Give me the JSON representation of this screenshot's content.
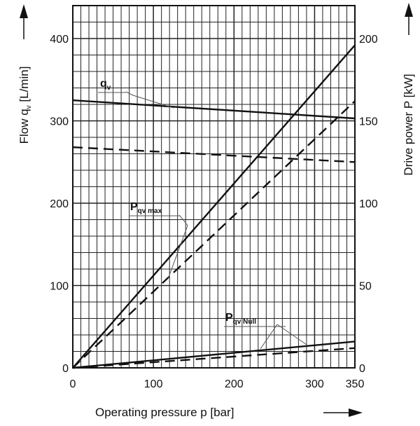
{
  "chart_data": {
    "type": "line",
    "xlabel": "Operating pressure p [bar]",
    "ylabel_left": "Flow q",
    "ylabel_left_sub": "v",
    "ylabel_left_unit": " [L/min]",
    "ylabel_right": "Drive power P [kW]",
    "xlim": [
      0,
      350
    ],
    "ylim_left": [
      0,
      440
    ],
    "ylim_right": [
      0,
      220
    ],
    "x_ticks": [
      0,
      100,
      200,
      300,
      350
    ],
    "y_left_ticks": [
      0,
      100,
      200,
      300,
      400
    ],
    "y_right_ticks": [
      0,
      50,
      100,
      150,
      200
    ],
    "grid": true,
    "series": [
      {
        "name": "qv",
        "axis": "left",
        "style": "solid",
        "x": [
          0,
          350
        ],
        "y": [
          325,
          303
        ]
      },
      {
        "name": "qv",
        "axis": "left",
        "style": "dashed",
        "x": [
          0,
          350
        ],
        "y": [
          268,
          250
        ]
      },
      {
        "name": "Pqv max",
        "axis": "right",
        "style": "solid",
        "x": [
          0,
          350
        ],
        "y": [
          0,
          196
        ]
      },
      {
        "name": "Pqv max",
        "axis": "right",
        "style": "dashed",
        "x": [
          0,
          350
        ],
        "y": [
          0,
          162
        ]
      },
      {
        "name": "Pqv Null",
        "axis": "right",
        "style": "solid",
        "x": [
          0,
          350
        ],
        "y": [
          0,
          16
        ]
      },
      {
        "name": "Pqv Null",
        "axis": "right",
        "style": "dashed",
        "x": [
          0,
          350
        ],
        "y": [
          0,
          12
        ]
      }
    ],
    "annotations": [
      {
        "main": "q",
        "sub": "v",
        "target_x": 155,
        "target_y": 318
      },
      {
        "main": "P",
        "sub": "qv max",
        "target_x": 140,
        "target_y": 125
      },
      {
        "main": "P",
        "sub": "qv Null",
        "target_x": 230,
        "target_y": 11
      }
    ]
  }
}
